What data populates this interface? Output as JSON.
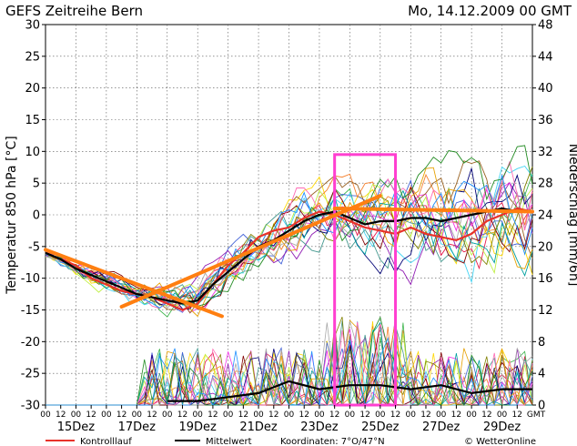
{
  "chart_data": {
    "type": "line",
    "title": "GEFS Zeitreihe Bern",
    "run_label": "Mo, 14.12.2009 00 GMT",
    "ylabel_left": "Temperatur 850 hPa [°C]",
    "ylabel_right": "Niederschlag [mm/6h]",
    "ylim_left": [
      -30,
      30
    ],
    "ylim_right": [
      0,
      48
    ],
    "yticks_left": [
      "30",
      "25",
      "20",
      "15",
      "10",
      "5",
      "0",
      "-5",
      "-10",
      "-15",
      "-20",
      "-25",
      "-30"
    ],
    "yticks_right": [
      "48",
      "44",
      "40",
      "36",
      "32",
      "28",
      "24",
      "20",
      "16",
      "12",
      "8",
      "4",
      "0"
    ],
    "hour_ticks": [
      "00",
      "12",
      "00",
      "12",
      "00",
      "12",
      "00",
      "12",
      "00",
      "12",
      "00",
      "12",
      "00",
      "12",
      "00",
      "12",
      "00",
      "12",
      "00",
      "12",
      "00",
      "12",
      "00",
      "12",
      "00",
      "12",
      "00",
      "12",
      "00",
      "12",
      "00",
      "12",
      "GMT"
    ],
    "day_labels": [
      "15Dez",
      "17Dez",
      "19Dez",
      "21Dez",
      "23Dez",
      "25Dez",
      "27Dez",
      "29Dez"
    ],
    "grid": true,
    "legend": {
      "kontroll": "Kontrolllauf",
      "mittel": "Mittelwert",
      "koordinaten": "Koordinaten: 7°O/47°N",
      "credit": "© WetterOnline"
    },
    "colors": {
      "kontroll": "#e8322a",
      "mittel": "#000000",
      "annotation_lines": "#ff7f11",
      "highlight_box": "#ff3fd0",
      "members": [
        "#e6194b",
        "#3cb44b",
        "#ffd700",
        "#4363d8",
        "#f58231",
        "#911eb4",
        "#42d4f4",
        "#f032e6",
        "#bfef45",
        "#469990",
        "#9a6324",
        "#800000",
        "#808000",
        "#000075",
        "#00a0a0",
        "#e6a000",
        "#a9a9a9",
        "#ff69b4",
        "#228b22",
        "#1e90ff"
      ]
    },
    "x_days": [
      0,
      16
    ],
    "mean_temperature": {
      "x": [
        0,
        0.5,
        1,
        1.5,
        2,
        2.5,
        3,
        3.5,
        4,
        4.5,
        5,
        5.5,
        6,
        6.5,
        7,
        7.5,
        8,
        8.5,
        9,
        9.5,
        10,
        10.5,
        11,
        11.5,
        12,
        12.5,
        13,
        13.5,
        14,
        14.5,
        15,
        15.5,
        16
      ],
      "y": [
        -6,
        -7,
        -8.5,
        -9.5,
        -10.5,
        -11.5,
        -12.5,
        -13,
        -13.5,
        -14,
        -13.5,
        -11,
        -9,
        -7,
        -5,
        -4,
        -2.5,
        -1,
        0,
        0.5,
        -0.5,
        -1.5,
        -1,
        -1,
        -0.5,
        -0.5,
        -1,
        -0.5,
        0,
        0.5,
        1,
        0.5,
        0.5
      ]
    },
    "kontroll_temperature": {
      "x": [
        0,
        0.5,
        1,
        1.5,
        2,
        2.5,
        3,
        3.5,
        4,
        4.5,
        5,
        5.5,
        6,
        6.5,
        7,
        7.5,
        8,
        8.5,
        9,
        9.5,
        10,
        10.5,
        11,
        11.5,
        12,
        12.5,
        13,
        13.5,
        14,
        14.5,
        15,
        15.5,
        16
      ],
      "y": [
        -6,
        -7,
        -8,
        -10,
        -11,
        -12,
        -12.5,
        -13,
        -14,
        -15,
        -14,
        -11,
        -8,
        -6,
        -3.5,
        -2.5,
        -2,
        -0.5,
        0.5,
        0,
        -1,
        -2,
        -2.5,
        -3,
        -2,
        -3,
        -3.5,
        -4,
        -3,
        -1,
        0,
        1,
        0.5
      ]
    },
    "mean_precip": {
      "x": [
        4,
        5,
        6,
        7,
        8,
        9,
        10,
        11,
        12,
        13,
        14,
        15,
        16
      ],
      "y": [
        0.5,
        0.5,
        1,
        1.5,
        3,
        2,
        2.5,
        2.5,
        2,
        2.5,
        1.5,
        2,
        2
      ]
    },
    "annotation_segments": [
      {
        "x": [
          0,
          5.8
        ],
        "y": [
          -5.5,
          -16
        ]
      },
      {
        "x": [
          2.5,
          11
        ],
        "y": [
          -14.5,
          3
        ]
      },
      {
        "x": [
          9.5,
          16
        ],
        "y": [
          1,
          0.5
        ]
      }
    ],
    "highlight_box": {
      "x": [
        9.5,
        11.5
      ],
      "ylim_left": [
        -30,
        9.5
      ]
    }
  }
}
